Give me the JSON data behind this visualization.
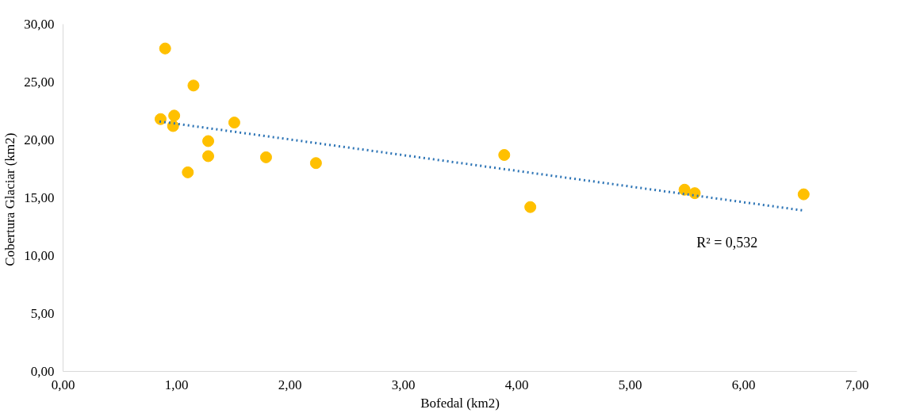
{
  "chart_data": {
    "type": "scatter",
    "xlabel": "Bofedal (km2)",
    "ylabel": "Cobertura Glaciar  (km2)",
    "grid": false,
    "xlim": [
      0,
      7
    ],
    "ylim": [
      0,
      30
    ],
    "xticks": [
      {
        "value": 0,
        "label": "0,00"
      },
      {
        "value": 1,
        "label": "1,00"
      },
      {
        "value": 2,
        "label": "2,00"
      },
      {
        "value": 3,
        "label": "3,00"
      },
      {
        "value": 4,
        "label": "4,00"
      },
      {
        "value": 5,
        "label": "5,00"
      },
      {
        "value": 6,
        "label": "6,00"
      },
      {
        "value": 7,
        "label": "7,00"
      }
    ],
    "yticks": [
      {
        "value": 0,
        "label": "0,00"
      },
      {
        "value": 5,
        "label": "5,00"
      },
      {
        "value": 10,
        "label": "10,00"
      },
      {
        "value": 15,
        "label": "15,00"
      },
      {
        "value": 20,
        "label": "20,00"
      },
      {
        "value": 25,
        "label": "25,00"
      },
      {
        "value": 30,
        "label": "30,00"
      }
    ],
    "series": [
      {
        "marker": "circle",
        "color": "#ffc000",
        "x": [
          0.86,
          0.9,
          0.97,
          0.98,
          1.15,
          1.1,
          1.28,
          1.28,
          1.51,
          1.79,
          2.23,
          3.89,
          4.12,
          5.48,
          5.57,
          6.53
        ],
        "values": [
          21.8,
          27.9,
          21.2,
          22.1,
          24.7,
          17.2,
          19.9,
          18.6,
          21.5,
          18.5,
          18.0,
          18.7,
          14.2,
          15.7,
          15.4,
          15.3
        ]
      },
      {
        "type": "line",
        "marker": "none",
        "color": "#2e75b6",
        "line_style": "dotted",
        "x": [
          0.85,
          6.53
        ],
        "values": [
          21.6,
          13.9
        ]
      }
    ],
    "annotations": [
      "R² = 0,532"
    ]
  }
}
